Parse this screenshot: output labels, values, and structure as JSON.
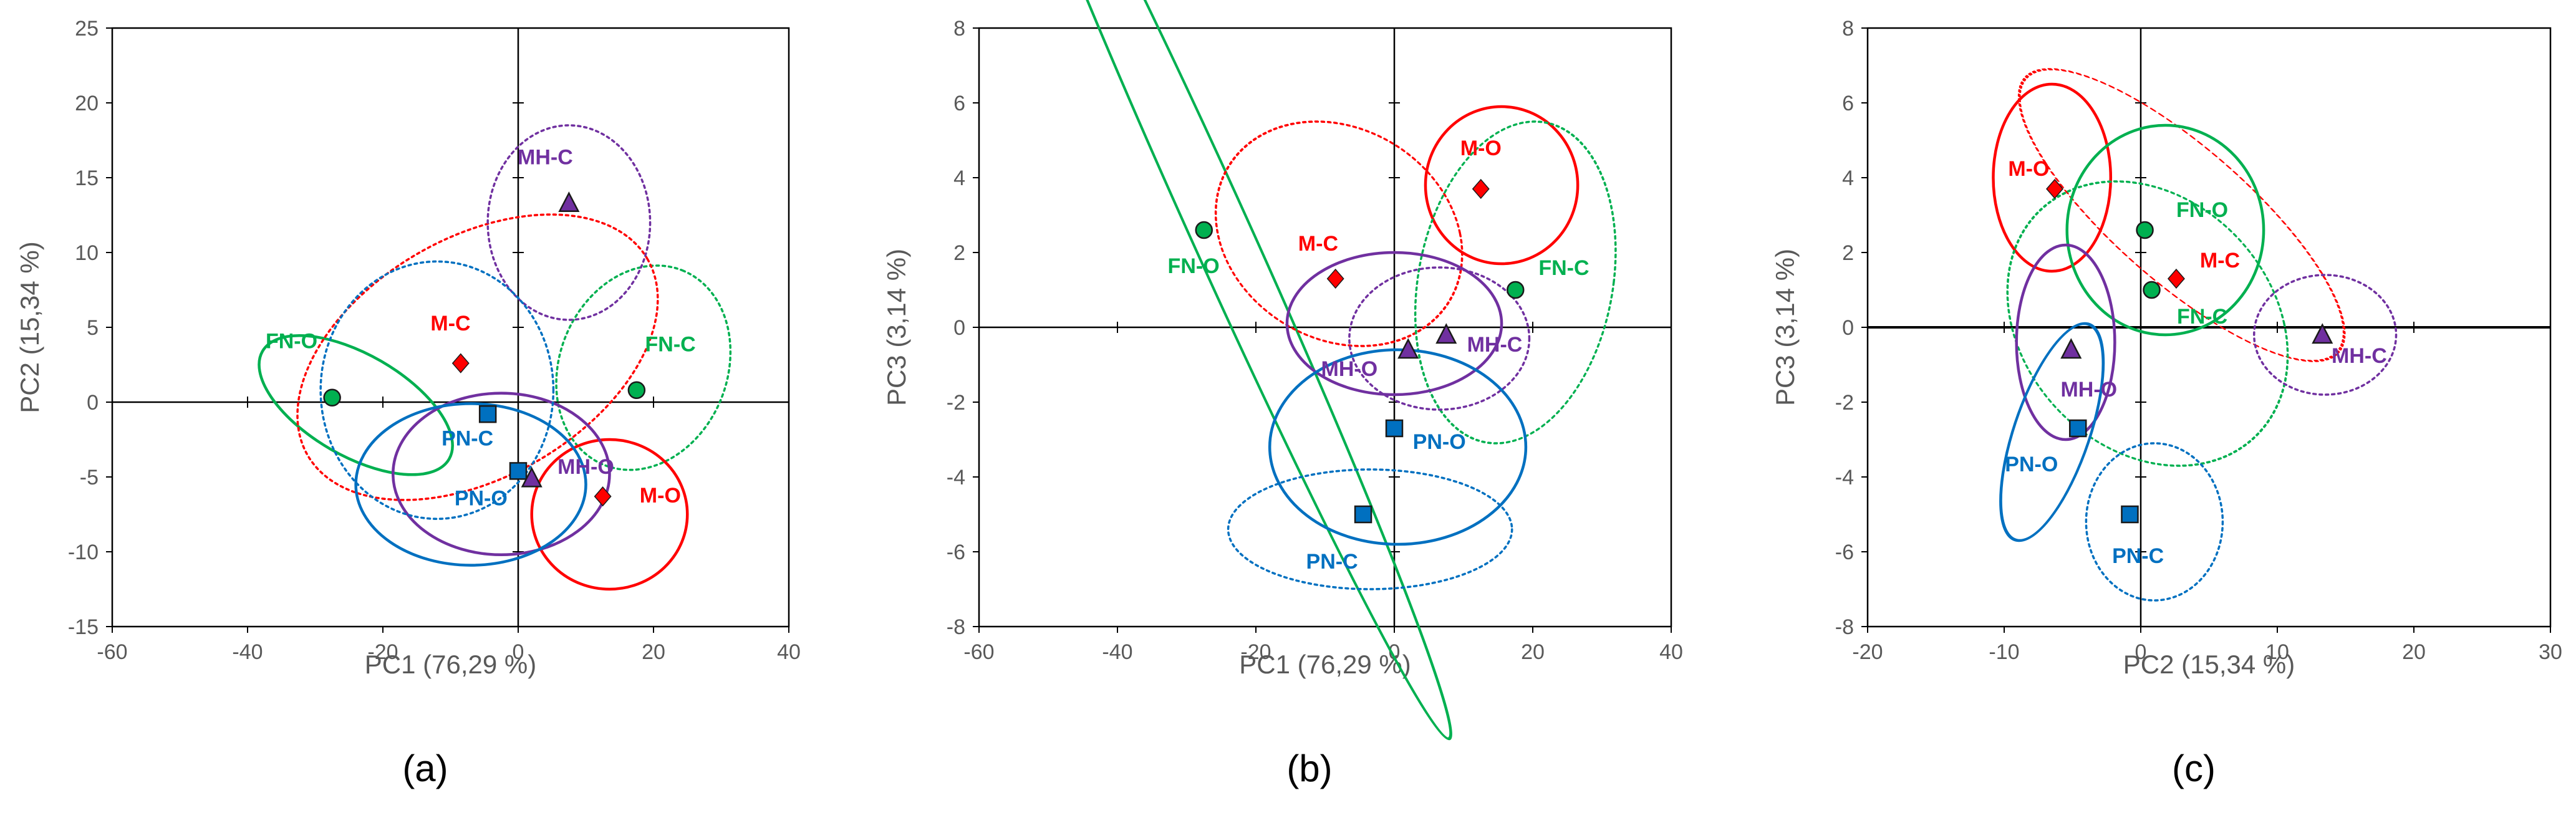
{
  "groups": {
    "FN-C": {
      "color": "#00B050",
      "marker": "circle"
    },
    "FN-O": {
      "color": "#00B050",
      "marker": "circle"
    },
    "M-C": {
      "color": "#FF0000",
      "marker": "diamond"
    },
    "M-O": {
      "color": "#FF0000",
      "marker": "diamond"
    },
    "MH-C": {
      "color": "#7030A0",
      "marker": "triangle"
    },
    "MH-O": {
      "color": "#7030A0",
      "marker": "triangle"
    },
    "PN-C": {
      "color": "#0070C0",
      "marker": "square"
    },
    "PN-O": {
      "color": "#0070C0",
      "marker": "square"
    }
  },
  "chart_data": [
    {
      "type": "scatter",
      "panel": "a",
      "panel_label": "(a)",
      "xlabel": "PC1 (76,29 %)",
      "ylabel": "PC2 (15,34 %)",
      "xlim": [
        -60,
        40
      ],
      "ylim": [
        -15,
        25
      ],
      "xticks": [
        -60,
        -40,
        -20,
        0,
        20,
        40
      ],
      "yticks": [
        -15,
        -10,
        -5,
        0,
        5,
        10,
        15,
        20,
        25
      ],
      "points": [
        {
          "group": "MH-C",
          "x": 7.5,
          "y": 13.3,
          "label": "MH-C",
          "label_pos": [
            4,
            16.4
          ]
        },
        {
          "group": "M-C",
          "x": -8.5,
          "y": 2.6,
          "label": "M-C",
          "label_pos": [
            -10,
            5.3
          ]
        },
        {
          "group": "FN-O",
          "x": -27.5,
          "y": 0.3,
          "label": "FN-O",
          "label_pos": [
            -33.5,
            4.1
          ]
        },
        {
          "group": "FN-C",
          "x": 17.5,
          "y": 0.8,
          "label": "FN-C",
          "label_pos": [
            22.5,
            3.9
          ]
        },
        {
          "group": "PN-C",
          "x": -4.5,
          "y": -0.8,
          "label": "PN-C",
          "label_pos": [
            -7.5,
            -2.4
          ]
        },
        {
          "group": "PN-O",
          "x": 0.0,
          "y": -4.6,
          "label": "PN-O",
          "label_pos": [
            -5.5,
            -6.4
          ]
        },
        {
          "group": "MH-O",
          "x": 2.0,
          "y": -5.1,
          "label": "MH-O",
          "label_pos": [
            10,
            -4.3
          ]
        },
        {
          "group": "M-O",
          "x": 12.5,
          "y": -6.3,
          "label": "M-O",
          "label_pos": [
            21,
            -6.2
          ]
        }
      ],
      "ellipses": [
        {
          "group": "FN-O",
          "style": "solid",
          "cx": -24,
          "cy": -0.2,
          "rx": 7.5,
          "ry": 7.2,
          "angle": -60
        },
        {
          "group": "FN-C",
          "style": "dotted",
          "cx": 18.5,
          "cy": 2.3,
          "rx": 15.5,
          "ry": 5.6,
          "angle": -68
        },
        {
          "group": "M-C",
          "style": "dotted",
          "cx": -6,
          "cy": 3,
          "rx": 29,
          "ry": 8,
          "angle": -30
        },
        {
          "group": "M-O",
          "style": "solid",
          "cx": 13.5,
          "cy": -7.5,
          "rx": 11.5,
          "ry": 5,
          "angle": 0
        },
        {
          "group": "MH-C",
          "style": "dotted",
          "cx": 7.5,
          "cy": 12,
          "rx": 12,
          "ry": 6.5,
          "angle": 0
        },
        {
          "group": "MH-O",
          "style": "solid",
          "cx": -2.5,
          "cy": -4.8,
          "rx": 16,
          "ry": 5.4,
          "angle": 0
        },
        {
          "group": "PN-C",
          "style": "dotted",
          "cx": -12,
          "cy": 0.8,
          "rx": 17.2,
          "ry": 8.6,
          "angle": 0
        },
        {
          "group": "PN-O",
          "style": "solid",
          "cx": -7,
          "cy": -5.5,
          "rx": 17,
          "ry": 5.4,
          "angle": 0
        }
      ]
    },
    {
      "type": "scatter",
      "panel": "b",
      "panel_label": "(b)",
      "xlabel": "PC1 (76,29 %)",
      "ylabel": "PC3 (3,14 %)",
      "xlim": [
        -60,
        40
      ],
      "ylim": [
        -8,
        8
      ],
      "xticks": [
        -60,
        -40,
        -20,
        0,
        20,
        40
      ],
      "yticks": [
        -8,
        -6,
        -4,
        -2,
        0,
        2,
        4,
        6,
        8
      ],
      "points": [
        {
          "group": "M-O",
          "x": 12.5,
          "y": 3.7,
          "label": "M-O",
          "label_pos": [
            12.5,
            4.8
          ]
        },
        {
          "group": "FN-O",
          "x": -27.5,
          "y": 2.6,
          "label": "FN-O",
          "label_pos": [
            -29,
            1.65
          ]
        },
        {
          "group": "M-C",
          "x": -8.5,
          "y": 1.3,
          "label": "M-C",
          "label_pos": [
            -11,
            2.25
          ]
        },
        {
          "group": "FN-C",
          "x": 17.5,
          "y": 1.0,
          "label": "FN-C",
          "label_pos": [
            24.5,
            1.6
          ]
        },
        {
          "group": "MH-O",
          "x": 2.0,
          "y": -0.6,
          "label": "MH-O",
          "label_pos": [
            -6.5,
            -1.1
          ]
        },
        {
          "group": "MH-C",
          "x": 7.5,
          "y": -0.2,
          "label": "MH-C",
          "label_pos": [
            14.5,
            -0.45
          ]
        },
        {
          "group": "PN-O",
          "x": 0.0,
          "y": -2.7,
          "label": "PN-O",
          "label_pos": [
            6.5,
            -3.05
          ]
        },
        {
          "group": "PN-C",
          "x": -4.5,
          "y": -5.0,
          "label": "PN-C",
          "label_pos": [
            -9,
            -6.25
          ]
        }
      ],
      "ellipses": [
        {
          "group": "FN-O",
          "style": "solid",
          "cx": -25,
          "cy": 2.5,
          "rx": 4.7,
          "ry": 13.5,
          "angle": 0,
          "skew": -0.45
        },
        {
          "group": "M-C",
          "style": "dotted",
          "cx": -8,
          "cy": 2.5,
          "rx": 17.5,
          "ry": 3.0,
          "angle": 0,
          "skew": -0.2
        },
        {
          "group": "M-O",
          "style": "solid",
          "cx": 15.5,
          "cy": 3.8,
          "rx": 11,
          "ry": 2.1,
          "angle": 0
        },
        {
          "group": "FN-C",
          "style": "dotted",
          "cx": 17.5,
          "cy": 1.2,
          "rx": 14.2,
          "ry": 4.3,
          "angle": 0,
          "skew": 0.12
        },
        {
          "group": "MH-O",
          "style": "solid",
          "cx": 0,
          "cy": 0.1,
          "rx": 15.5,
          "ry": 1.9,
          "angle": 0
        },
        {
          "group": "MH-C",
          "style": "dotted",
          "cx": 6.5,
          "cy": -0.3,
          "rx": 13,
          "ry": 1.9,
          "angle": 0
        },
        {
          "group": "PN-O",
          "style": "solid",
          "cx": 0.5,
          "cy": -3.2,
          "rx": 18.5,
          "ry": 2.6,
          "angle": 0
        },
        {
          "group": "PN-C",
          "style": "dotted",
          "cx": -3.5,
          "cy": -5.4,
          "rx": 20.5,
          "ry": 1.6,
          "angle": 0
        }
      ]
    },
    {
      "type": "scatter",
      "panel": "c",
      "panel_label": "(c)",
      "xlabel": "PC2 (15,34 %)",
      "ylabel": "PC3 (3,14 %)",
      "xlim": [
        -20,
        30
      ],
      "ylim": [
        -8,
        8
      ],
      "xticks": [
        -20,
        -10,
        0,
        10,
        20,
        30
      ],
      "yticks": [
        -8,
        -6,
        -4,
        -2,
        0,
        2,
        4,
        6,
        8
      ],
      "points": [
        {
          "group": "M-O",
          "x": -6.3,
          "y": 3.7,
          "label": "M-O",
          "label_pos": [
            -8.2,
            4.25
          ]
        },
        {
          "group": "FN-O",
          "x": 0.3,
          "y": 2.6,
          "label": "FN-O",
          "label_pos": [
            4.5,
            3.15
          ]
        },
        {
          "group": "M-C",
          "x": 2.6,
          "y": 1.3,
          "label": "M-C",
          "label_pos": [
            5.8,
            1.8
          ]
        },
        {
          "group": "FN-C",
          "x": 0.8,
          "y": 1.0,
          "label": "FN-C",
          "label_pos": [
            4.5,
            0.3
          ]
        },
        {
          "group": "MH-O",
          "x": -5.1,
          "y": -0.6,
          "label": "MH-O",
          "label_pos": [
            -3.8,
            -1.65
          ]
        },
        {
          "group": "MH-C",
          "x": 13.3,
          "y": -0.2,
          "label": "MH-C",
          "label_pos": [
            16.0,
            -0.75
          ]
        },
        {
          "group": "PN-O",
          "x": -4.6,
          "y": -2.7,
          "label": "PN-O",
          "label_pos": [
            -8.0,
            -3.65
          ]
        },
        {
          "group": "PN-C",
          "x": -0.8,
          "y": -5.0,
          "label": "PN-C",
          "label_pos": [
            -0.2,
            -6.1
          ]
        }
      ],
      "ellipses": [
        {
          "group": "M-O",
          "style": "solid",
          "cx": -6.5,
          "cy": 4.0,
          "rx": 4.3,
          "ry": 2.5,
          "angle": 0
        },
        {
          "group": "M-C",
          "style": "dotted",
          "cx": 3.0,
          "cy": 3.0,
          "rx": 7.0,
          "ry": 3.9,
          "angle": 0,
          "skew": -0.9
        },
        {
          "group": "FN-O",
          "style": "solid",
          "cx": 1.8,
          "cy": 2.6,
          "rx": 7.2,
          "ry": 2.8,
          "angle": 0
        },
        {
          "group": "FN-C",
          "style": "dotted",
          "cx": 0.5,
          "cy": 0.1,
          "rx": 10,
          "ry": 3.8,
          "angle": 0,
          "skew": -0.22
        },
        {
          "group": "MH-C",
          "style": "dotted",
          "cx": 13.5,
          "cy": -0.2,
          "rx": 5.2,
          "ry": 1.6,
          "angle": 0
        },
        {
          "group": "MH-O",
          "style": "solid",
          "cx": -5.5,
          "cy": -0.4,
          "rx": 3.6,
          "ry": 2.6,
          "angle": 0
        },
        {
          "group": "PN-O",
          "style": "solid",
          "cx": -6.5,
          "cy": -2.8,
          "rx": 2.9,
          "ry": 2.9,
          "angle": 0,
          "skew": 0.3
        },
        {
          "group": "PN-C",
          "style": "dotted",
          "cx": 1.0,
          "cy": -5.2,
          "rx": 5.0,
          "ry": 2.1,
          "angle": 0
        }
      ]
    }
  ]
}
